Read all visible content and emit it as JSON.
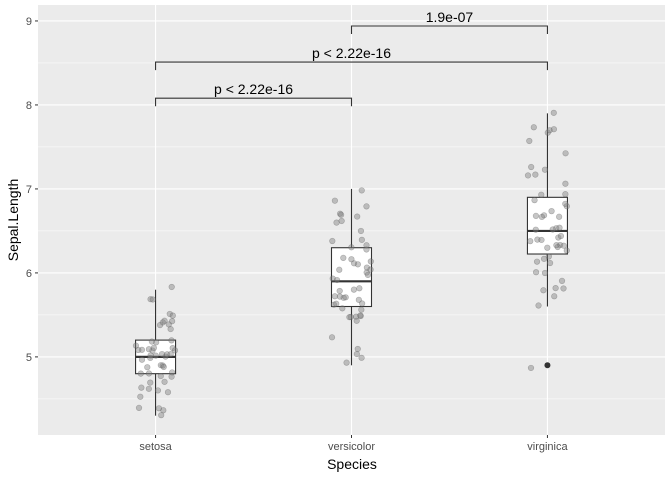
{
  "chart_data": {
    "type": "boxplot",
    "xlabel": "Species",
    "ylabel": "Sepal.Length",
    "categories": [
      "setosa",
      "versicolor",
      "virginica"
    ],
    "ylim": [
      4.07,
      9.19
    ],
    "yticks": [
      5,
      6,
      7,
      8,
      9
    ],
    "grid": true,
    "boxes": [
      {
        "category": "setosa",
        "lower_whisker": 4.3,
        "q1": 4.8,
        "median": 5.0,
        "q3": 5.2,
        "upper_whisker": 5.8,
        "outliers": []
      },
      {
        "category": "versicolor",
        "lower_whisker": 4.9,
        "q1": 5.6,
        "median": 5.9,
        "q3": 6.3,
        "upper_whisker": 7.0,
        "outliers": []
      },
      {
        "category": "virginica",
        "lower_whisker": 5.6,
        "q1": 6.225,
        "median": 6.5,
        "q3": 6.9,
        "upper_whisker": 7.9,
        "outliers": [
          4.9
        ]
      }
    ],
    "points": {
      "setosa": [
        5.1,
        4.9,
        4.7,
        4.6,
        5.0,
        5.4,
        4.6,
        5.0,
        4.4,
        4.9,
        5.4,
        4.8,
        4.8,
        4.3,
        5.8,
        5.7,
        5.4,
        5.1,
        5.7,
        5.1,
        5.4,
        5.1,
        4.6,
        5.1,
        4.8,
        5.0,
        5.0,
        5.2,
        5.2,
        4.7,
        4.8,
        5.4,
        5.2,
        5.5,
        4.9,
        5.0,
        5.5,
        4.9,
        4.4,
        5.1,
        5.0,
        4.5,
        4.4,
        5.0,
        5.1,
        4.8,
        5.1,
        4.6,
        5.3,
        5.0
      ],
      "versicolor": [
        7.0,
        6.4,
        6.9,
        5.5,
        6.5,
        5.7,
        6.3,
        4.9,
        6.6,
        5.2,
        5.0,
        5.9,
        6.0,
        6.1,
        5.6,
        6.7,
        5.6,
        5.8,
        6.2,
        5.6,
        5.9,
        6.1,
        6.3,
        6.1,
        6.4,
        6.6,
        6.8,
        6.7,
        6.0,
        5.7,
        5.5,
        5.5,
        5.8,
        6.0,
        5.4,
        6.0,
        6.7,
        6.3,
        5.6,
        5.5,
        5.5,
        6.1,
        5.8,
        5.0,
        5.6,
        5.7,
        5.7,
        6.2,
        5.1,
        5.7
      ],
      "virginica": [
        6.3,
        5.8,
        7.1,
        6.3,
        6.5,
        7.6,
        4.9,
        7.3,
        6.7,
        7.2,
        6.5,
        6.4,
        6.8,
        5.7,
        5.8,
        6.4,
        6.5,
        7.7,
        7.7,
        6.0,
        6.9,
        5.6,
        7.7,
        6.3,
        6.7,
        7.2,
        6.2,
        6.1,
        6.4,
        7.2,
        7.4,
        7.9,
        6.4,
        6.3,
        6.1,
        7.7,
        6.3,
        6.4,
        6.0,
        6.9,
        6.7,
        6.9,
        5.8,
        6.8,
        6.7,
        6.7,
        6.3,
        6.5,
        6.2,
        5.9
      ]
    },
    "comparisons": [
      {
        "from": "setosa",
        "to": "versicolor",
        "y": 8.08,
        "label": "p < 2.22e-16"
      },
      {
        "from": "setosa",
        "to": "virginica",
        "y": 8.51,
        "label": "p < 2.22e-16"
      },
      {
        "from": "versicolor",
        "to": "virginica",
        "y": 8.94,
        "label": "1.9e-07"
      }
    ],
    "colors": {
      "panel": "#ebebeb",
      "grid": "#ffffff",
      "box_fill": "#ffffff",
      "box_line": "#333333",
      "point": "#808080"
    }
  }
}
